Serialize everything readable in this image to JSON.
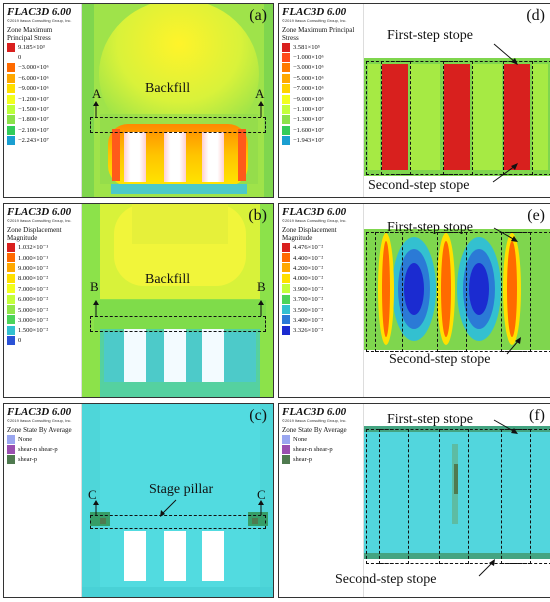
{
  "panels": {
    "a": {
      "software": "FLAC3D 6.00",
      "copyright": "©2019 Itasca Consulting Group, Inc.",
      "legend_title": "Zone Maximum Principal Stress",
      "legend_values": [
        "9.185×10³",
        "0",
        "−3.000×10⁶",
        "−6.000×10⁶",
        "−9.000×10⁶",
        "−1.200×10⁷",
        "−1.500×10⁷",
        "−1.800×10⁷",
        "−2.100×10⁷",
        "−2.243×10⁷"
      ],
      "legend_colors": [
        "#d9201e",
        "#ffffff",
        "#ff6a00",
        "#ffa800",
        "#ffdf00",
        "#f2ff1e",
        "#bcff3a",
        "#8ce24a",
        "#33cc5a",
        "#1a9fd1"
      ],
      "letter": "(a)",
      "labels": {
        "backfill": "Backfill",
        "section_left": "A",
        "section_right": "A"
      }
    },
    "b": {
      "software": "FLAC3D 6.00",
      "copyright": "©2019 Itasca Consulting Group, Inc.",
      "legend_title": "Zone Displacement Magnitude",
      "legend_values": [
        "1.032×10⁻¹",
        "1.000×10⁻¹",
        "9.000×10⁻²",
        "8.000×10⁻²",
        "7.000×10⁻²",
        "6.000×10⁻²",
        "5.000×10⁻²",
        "3.000×10⁻²",
        "1.500×10⁻²",
        "0"
      ],
      "legend_colors": [
        "#d9201e",
        "#ff6a00",
        "#ffa800",
        "#ffe000",
        "#f2ff1e",
        "#c4ff3a",
        "#92e64a",
        "#4dd45a",
        "#33c0d0",
        "#2b52d6"
      ],
      "letter": "(b)",
      "labels": {
        "backfill": "Backfill",
        "section_left": "B",
        "section_right": "B"
      }
    },
    "c": {
      "software": "FLAC3D 6.00",
      "copyright": "©2019 Itasca Consulting Group, Inc.",
      "legend_title": "Zone State By Average",
      "legend_values": [
        "None",
        "shear-n shear-p",
        "shear-p"
      ],
      "legend_colors": [
        "#9aa6f0",
        "#9a4fb0",
        "#4f7a4f"
      ],
      "letter": "(c)",
      "labels": {
        "stage_pillar": "Stage pillar",
        "section_left": "C",
        "section_right": "C"
      }
    },
    "d": {
      "software": "FLAC3D 6.00",
      "copyright": "©2019 Itasca Consulting Group, Inc.",
      "legend_title": "Zone Maximum Principal Stress",
      "legend_values": [
        "3.581×10⁵",
        "−1.000×10⁶",
        "−3.000×10⁶",
        "−5.000×10⁶",
        "−7.000×10⁶",
        "−9.000×10⁶",
        "−1.100×10⁷",
        "−1.300×10⁷",
        "−1.600×10⁷",
        "−1.943×10⁷"
      ],
      "legend_colors": [
        "#d9201e",
        "#ff4a1a",
        "#ff7a00",
        "#ffa800",
        "#ffd200",
        "#f2ff1e",
        "#c4ff3a",
        "#8ce24a",
        "#33cc5a",
        "#1a9fd1"
      ],
      "letter": "(d)",
      "labels": {
        "first_step": "First-step stope",
        "second_step": "Second-step stope"
      }
    },
    "e": {
      "software": "FLAC3D 6.00",
      "copyright": "©2019 Itasca Consulting Group, Inc.",
      "legend_title": "Zone Displacement Magnitude",
      "legend_values": [
        "4.476×10⁻²",
        "4.400×10⁻²",
        "4.200×10⁻²",
        "4.000×10⁻²",
        "3.900×10⁻²",
        "3.700×10⁻²",
        "3.500×10⁻²",
        "3.400×10⁻²",
        "3.326×10⁻²"
      ],
      "legend_colors": [
        "#d9201e",
        "#ff6a00",
        "#ffa800",
        "#ffe000",
        "#c4ff3a",
        "#4dd45a",
        "#33c0d0",
        "#2b7ad6",
        "#1b2bd0"
      ],
      "letter": "(e)",
      "labels": {
        "first_step": "First-step stope",
        "second_step": "Second-step stope"
      }
    },
    "f": {
      "software": "FLAC3D 6.00",
      "copyright": "©2019 Itasca Consulting Group, Inc.",
      "legend_title": "Zone State By Average",
      "legend_values": [
        "None",
        "shear-n shear-p",
        "shear-p"
      ],
      "legend_colors": [
        "#9aa6f0",
        "#9a4fb0",
        "#4f7a4f"
      ],
      "letter": "(f)",
      "labels": {
        "first_step": "First-step stope",
        "second_step": "Second-step stope"
      }
    }
  }
}
